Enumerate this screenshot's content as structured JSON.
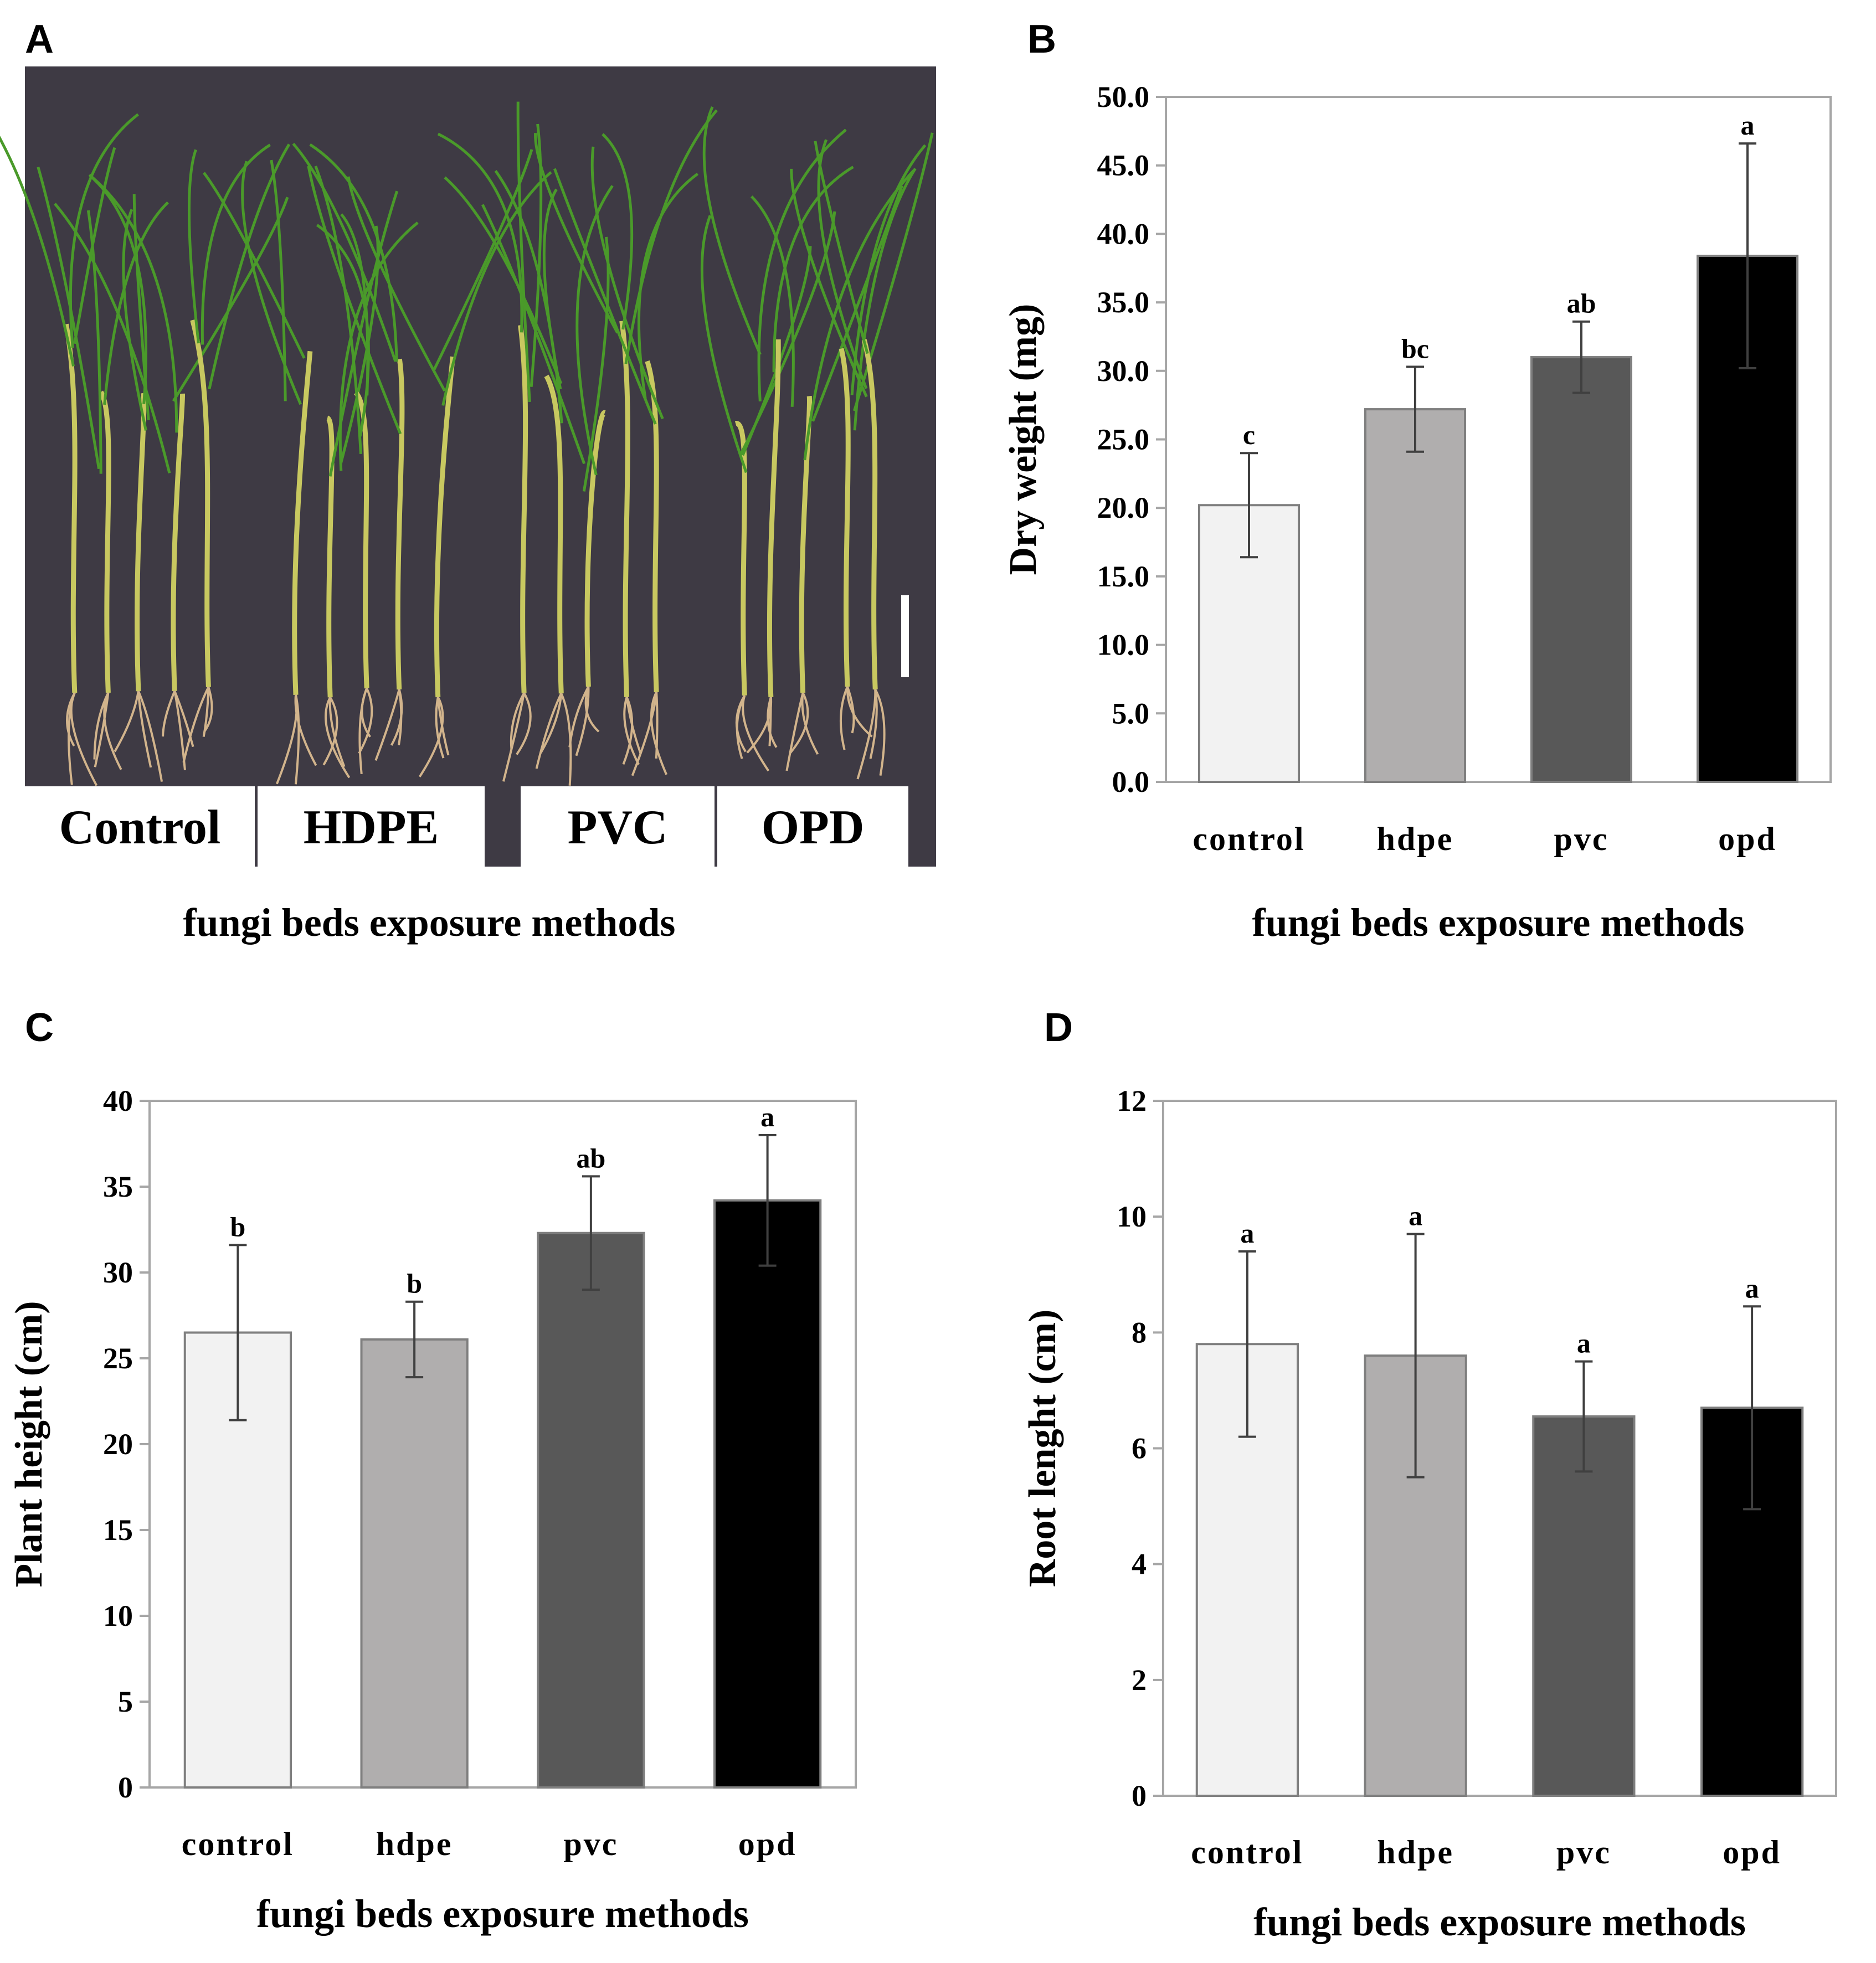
{
  "panels": {
    "a": {
      "letter": "A",
      "group_labels": [
        "Control",
        "HDPE",
        "PVC",
        "OPD"
      ],
      "xlabel": "fungi beds exposure methods",
      "colors": {
        "background": "#3e3a44",
        "leaf": "#4a9a2a",
        "stem": "#c8c860",
        "root": "#d2b48c",
        "scale_bar": "#ffffff"
      }
    },
    "b": {
      "letter": "B"
    },
    "c": {
      "letter": "C"
    },
    "d": {
      "letter": "D"
    }
  },
  "colors": {
    "bars": [
      "#f2f2f2",
      "#b0aeae",
      "#585858",
      "#000000"
    ],
    "bar_stroke": "#7f7f7f",
    "axis": "#a6a6a6",
    "error": "#404040"
  },
  "chart_data": [
    {
      "panel": "B",
      "type": "bar",
      "categories": [
        "control",
        "hdpe",
        "pvc",
        "opd"
      ],
      "values": [
        20.2,
        27.2,
        31.0,
        38.4
      ],
      "errors": [
        3.8,
        3.1,
        2.6,
        8.2
      ],
      "significance": [
        "c",
        "bc",
        "ab",
        "a"
      ],
      "yticks": [
        "0.0",
        "5.0",
        "10.0",
        "15.0",
        "20.0",
        "25.0",
        "30.0",
        "35.0",
        "40.0",
        "45.0",
        "50.0"
      ],
      "ylim": [
        0,
        50
      ],
      "xlabel": "fungi beds exposure methods",
      "ylabel": "Dry weight (mg)"
    },
    {
      "panel": "C",
      "type": "bar",
      "categories": [
        "control",
        "hdpe",
        "pvc",
        "opd"
      ],
      "values": [
        26.5,
        26.1,
        32.3,
        34.2
      ],
      "errors": [
        5.1,
        2.2,
        3.3,
        3.8
      ],
      "significance": [
        "b",
        "b",
        "ab",
        "a"
      ],
      "yticks": [
        "0",
        "5",
        "10",
        "15",
        "20",
        "25",
        "30",
        "35",
        "40"
      ],
      "ylim": [
        0,
        40
      ],
      "xlabel": "fungi beds exposure methods",
      "ylabel": "Plant height (cm)"
    },
    {
      "panel": "D",
      "type": "bar",
      "categories": [
        "control",
        "hdpe",
        "pvc",
        "opd"
      ],
      "values": [
        7.8,
        7.6,
        6.55,
        6.7
      ],
      "errors": [
        1.6,
        2.1,
        0.95,
        1.75
      ],
      "significance": [
        "a",
        "a",
        "a",
        "a"
      ],
      "yticks": [
        "0",
        "2",
        "4",
        "6",
        "8",
        "10",
        "12"
      ],
      "ylim": [
        0,
        12
      ],
      "xlabel": "fungi beds exposure methods",
      "ylabel": "Root lenght (cm)"
    }
  ]
}
